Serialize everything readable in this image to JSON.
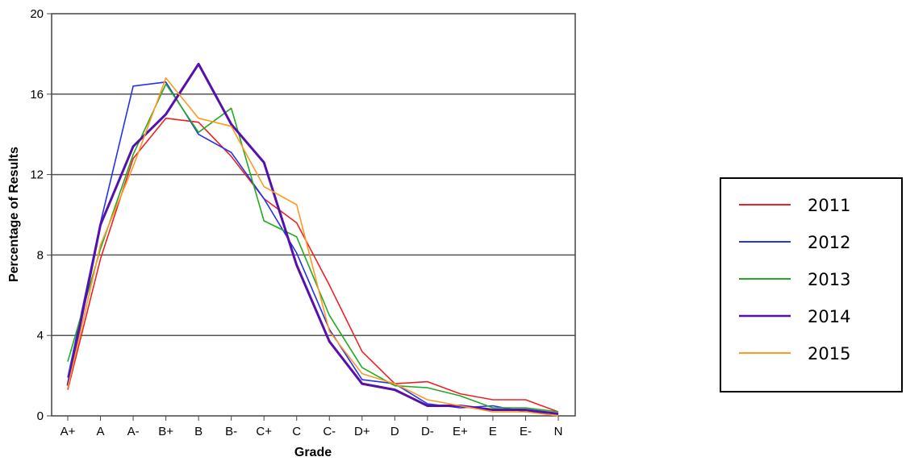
{
  "chart_data": {
    "type": "line",
    "title": "",
    "xlabel": "Grade",
    "ylabel": "Percentage of Results",
    "categories": [
      "A+",
      "A",
      "A-",
      "B+",
      "B",
      "B-",
      "C+",
      "C",
      "C-",
      "D+",
      "D",
      "D-",
      "E+",
      "E",
      "E-",
      "N"
    ],
    "yticks": [
      0,
      4,
      8,
      12,
      16,
      20
    ],
    "ylim": [
      0,
      20
    ],
    "grid": "horizontal",
    "legend_position": "right",
    "series": [
      {
        "name": "2011",
        "color": "#ee2222",
        "values": [
          1.3,
          7.8,
          12.8,
          14.8,
          14.6,
          12.9,
          10.8,
          9.6,
          6.5,
          3.2,
          1.6,
          1.7,
          1.1,
          0.8,
          0.8,
          0.2
        ]
      },
      {
        "name": "2012",
        "color": "#2233ee",
        "values": [
          1.9,
          9.6,
          16.4,
          16.6,
          14.0,
          13.1,
          10.8,
          8.1,
          4.3,
          1.8,
          1.6,
          0.6,
          0.4,
          0.5,
          0.2,
          0.1
        ]
      },
      {
        "name": "2013",
        "color": "#22aa22",
        "values": [
          2.7,
          8.3,
          13.0,
          16.5,
          14.1,
          15.3,
          9.7,
          8.9,
          5.0,
          2.4,
          1.5,
          1.4,
          1.0,
          0.4,
          0.4,
          0.2
        ]
      },
      {
        "name": "2014",
        "color": "#5511aa",
        "values": [
          1.5,
          9.5,
          13.4,
          15.0,
          17.5,
          14.5,
          12.6,
          7.5,
          3.7,
          1.6,
          1.3,
          0.5,
          0.5,
          0.3,
          0.3,
          0.1
        ]
      },
      {
        "name": "2015",
        "color": "#ff9922",
        "values": [
          1.4,
          8.5,
          12.4,
          16.8,
          14.8,
          14.4,
          11.4,
          10.5,
          4.2,
          2.1,
          1.6,
          0.8,
          0.5,
          0.2,
          0.2,
          0.0
        ]
      }
    ]
  }
}
